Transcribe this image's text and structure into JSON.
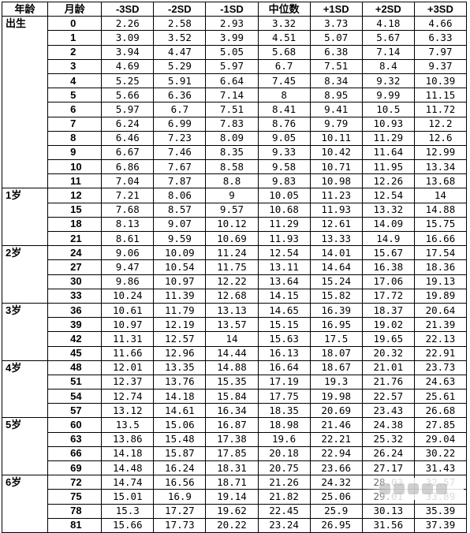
{
  "headers": [
    "年龄",
    "月龄",
    "-3SD",
    "-2SD",
    "-1SD",
    "中位数",
    "+1SD",
    "+2SD",
    "+3SD"
  ],
  "rows": [
    {
      "age": "出生",
      "month": "0",
      "v": [
        "2.26",
        "2.58",
        "2.93",
        "3.32",
        "3.73",
        "4.18",
        "4.66"
      ]
    },
    {
      "age": "",
      "month": "1",
      "v": [
        "3.09",
        "3.52",
        "3.99",
        "4.51",
        "5.07",
        "5.67",
        "6.33"
      ]
    },
    {
      "age": "",
      "month": "2",
      "v": [
        "3.94",
        "4.47",
        "5.05",
        "5.68",
        "6.38",
        "7.14",
        "7.97"
      ]
    },
    {
      "age": "",
      "month": "3",
      "v": [
        "4.69",
        "5.29",
        "5.97",
        "6.7",
        "7.51",
        "8.4",
        "9.37"
      ]
    },
    {
      "age": "",
      "month": "4",
      "v": [
        "5.25",
        "5.91",
        "6.64",
        "7.45",
        "8.34",
        "9.32",
        "10.39"
      ]
    },
    {
      "age": "",
      "month": "5",
      "v": [
        "5.66",
        "6.36",
        "7.14",
        "8",
        "8.95",
        "9.99",
        "11.15"
      ]
    },
    {
      "age": "",
      "month": "6",
      "v": [
        "5.97",
        "6.7",
        "7.51",
        "8.41",
        "9.41",
        "10.5",
        "11.72"
      ]
    },
    {
      "age": "",
      "month": "7",
      "v": [
        "6.24",
        "6.99",
        "7.83",
        "8.76",
        "9.79",
        "10.93",
        "12.2"
      ]
    },
    {
      "age": "",
      "month": "8",
      "v": [
        "6.46",
        "7.23",
        "8.09",
        "9.05",
        "10.11",
        "11.29",
        "12.6"
      ]
    },
    {
      "age": "",
      "month": "9",
      "v": [
        "6.67",
        "7.46",
        "8.35",
        "9.33",
        "10.42",
        "11.64",
        "12.99"
      ]
    },
    {
      "age": "",
      "month": "10",
      "v": [
        "6.86",
        "7.67",
        "8.58",
        "9.58",
        "10.71",
        "11.95",
        "13.34"
      ]
    },
    {
      "age": "",
      "month": "11",
      "v": [
        "7.04",
        "7.87",
        "8.8",
        "9.83",
        "10.98",
        "12.26",
        "13.68"
      ]
    },
    {
      "age": "1岁",
      "month": "12",
      "v": [
        "7.21",
        "8.06",
        "9",
        "10.05",
        "11.23",
        "12.54",
        "14"
      ]
    },
    {
      "age": "",
      "month": "15",
      "v": [
        "7.68",
        "8.57",
        "9.57",
        "10.68",
        "11.93",
        "13.32",
        "14.88"
      ]
    },
    {
      "age": "",
      "month": "18",
      "v": [
        "8.13",
        "9.07",
        "10.12",
        "11.29",
        "12.61",
        "14.09",
        "15.75"
      ]
    },
    {
      "age": "",
      "month": "21",
      "v": [
        "8.61",
        "9.59",
        "10.69",
        "11.93",
        "13.33",
        "14.9",
        "16.66"
      ]
    },
    {
      "age": "2岁",
      "month": "24",
      "v": [
        "9.06",
        "10.09",
        "11.24",
        "12.54",
        "14.01",
        "15.67",
        "17.54"
      ]
    },
    {
      "age": "",
      "month": "27",
      "v": [
        "9.47",
        "10.54",
        "11.75",
        "13.11",
        "14.64",
        "16.38",
        "18.36"
      ]
    },
    {
      "age": "",
      "month": "30",
      "v": [
        "9.86",
        "10.97",
        "12.22",
        "13.64",
        "15.24",
        "17.06",
        "19.13"
      ]
    },
    {
      "age": "",
      "month": "33",
      "v": [
        "10.24",
        "11.39",
        "12.68",
        "14.15",
        "15.82",
        "17.72",
        "19.89"
      ]
    },
    {
      "age": "3岁",
      "month": "36",
      "v": [
        "10.61",
        "11.79",
        "13.13",
        "14.65",
        "16.39",
        "18.37",
        "20.64"
      ]
    },
    {
      "age": "",
      "month": "39",
      "v": [
        "10.97",
        "12.19",
        "13.57",
        "15.15",
        "16.95",
        "19.02",
        "21.39"
      ]
    },
    {
      "age": "",
      "month": "42",
      "v": [
        "11.31",
        "12.57",
        "14",
        "15.63",
        "17.5",
        "19.65",
        "22.13"
      ]
    },
    {
      "age": "",
      "month": "45",
      "v": [
        "11.66",
        "12.96",
        "14.44",
        "16.13",
        "18.07",
        "20.32",
        "22.91"
      ]
    },
    {
      "age": "4岁",
      "month": "48",
      "v": [
        "12.01",
        "13.35",
        "14.88",
        "16.64",
        "18.67",
        "21.01",
        "23.73"
      ]
    },
    {
      "age": "",
      "month": "51",
      "v": [
        "12.37",
        "13.76",
        "15.35",
        "17.19",
        "19.3",
        "21.76",
        "24.63"
      ]
    },
    {
      "age": "",
      "month": "54",
      "v": [
        "12.74",
        "14.18",
        "15.84",
        "17.75",
        "19.98",
        "22.57",
        "25.61"
      ]
    },
    {
      "age": "",
      "month": "57",
      "v": [
        "13.12",
        "14.61",
        "16.34",
        "18.35",
        "20.69",
        "23.43",
        "26.68"
      ]
    },
    {
      "age": "5岁",
      "month": "60",
      "v": [
        "13.5",
        "15.06",
        "16.87",
        "18.98",
        "21.46",
        "24.38",
        "27.85"
      ]
    },
    {
      "age": "",
      "month": "63",
      "v": [
        "13.86",
        "15.48",
        "17.38",
        "19.6",
        "22.21",
        "25.32",
        "29.04"
      ]
    },
    {
      "age": "",
      "month": "66",
      "v": [
        "14.18",
        "15.87",
        "17.85",
        "20.18",
        "22.94",
        "26.24",
        "30.22"
      ]
    },
    {
      "age": "",
      "month": "69",
      "v": [
        "14.48",
        "16.24",
        "18.31",
        "20.75",
        "23.66",
        "27.17",
        "31.43"
      ]
    },
    {
      "age": "6岁",
      "month": "72",
      "v": [
        "14.74",
        "16.56",
        "18.71",
        "21.26",
        "24.32",
        "28.03",
        "32.57"
      ]
    },
    {
      "age": "",
      "month": "75",
      "v": [
        "15.01",
        "16.9",
        "19.14",
        "21.82",
        "25.06",
        "29.01",
        "33.89"
      ]
    },
    {
      "age": "",
      "month": "78",
      "v": [
        "15.3",
        "17.27",
        "19.62",
        "22.45",
        "25.9",
        "30.13",
        "35.39"
      ]
    },
    {
      "age": "",
      "month": "81",
      "v": [
        "15.66",
        "17.73",
        "20.22",
        "23.24",
        "26.95",
        "31.56",
        "37.39"
      ]
    }
  ]
}
